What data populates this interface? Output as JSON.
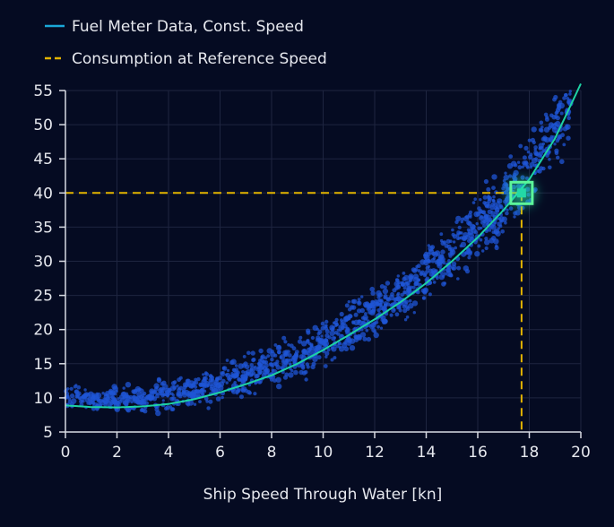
{
  "chart_data": {
    "type": "scatter",
    "xlabel": "Ship Speed Through Water [kn]",
    "ylabel": "",
    "xlim": [
      0,
      20
    ],
    "ylim": [
      5,
      55
    ],
    "xticks": [
      0,
      2,
      4,
      6,
      8,
      10,
      12,
      14,
      16,
      18,
      20
    ],
    "yticks": [
      5,
      10,
      15,
      20,
      25,
      30,
      35,
      40,
      45,
      50,
      55
    ],
    "grid": true,
    "legend_position": "top-left",
    "series": [
      {
        "name": "Fuel Meter Data, Const. Speed",
        "type": "line",
        "color": "#1ed3a4",
        "legend_color": "#1aa8d8",
        "x": [
          0,
          1,
          2,
          3,
          4,
          5,
          6,
          7,
          8,
          9,
          10,
          11,
          12,
          13,
          14,
          15,
          16,
          17,
          18,
          19,
          20
        ],
        "y": [
          8.9,
          8.65,
          8.6,
          8.75,
          9.1,
          9.8,
          10.8,
          12,
          13.3,
          15,
          17,
          19.2,
          21.5,
          24,
          26.8,
          30,
          33.5,
          37.5,
          42,
          48,
          56
        ]
      },
      {
        "name": "Consumption at Reference Speed",
        "type": "reference",
        "color": "#e3b400",
        "x": 17.7,
        "y": 40
      }
    ],
    "scatter_color": "#1f56d6"
  }
}
